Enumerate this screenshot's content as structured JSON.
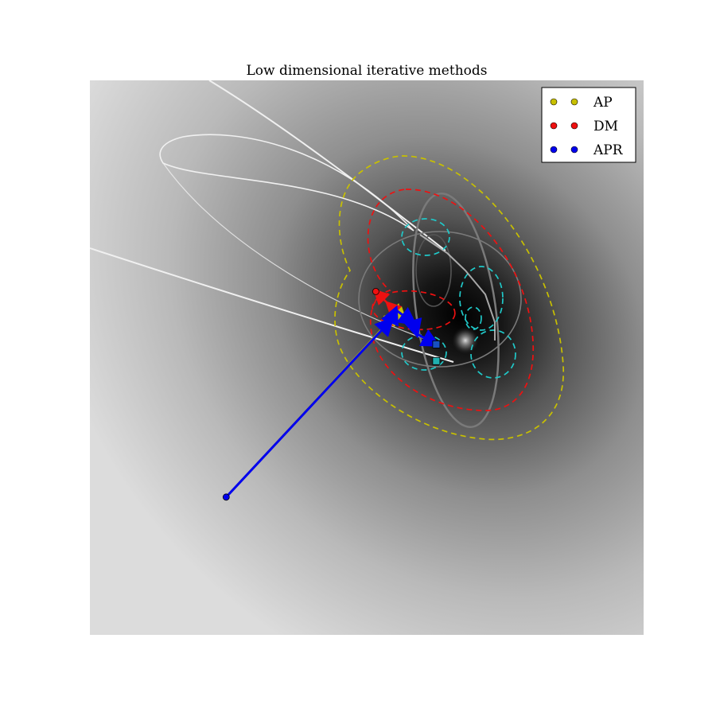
{
  "chart_data": {
    "type": "scatter",
    "title": "Low dimensional iterative methods",
    "xlabel": "",
    "ylabel": "",
    "axes_visible": false,
    "grid": false,
    "legend_placement": "top-right",
    "background": "grayscale objective-function heatmap, dark minimum near the bright focal point",
    "series": [
      {
        "name": "AP",
        "color": "#c8c000",
        "marker": "circle",
        "points": [
          [
            -0.93,
            -0.92
          ],
          [
            0.2,
            0.3
          ],
          [
            0.23,
            0.27
          ],
          [
            0.25,
            0.25
          ]
        ]
      },
      {
        "name": "DM",
        "color": "#ee1111",
        "marker": "circle",
        "points": [
          [
            0.2,
            0.3
          ],
          [
            0.14,
            0.36
          ],
          [
            0.06,
            0.44
          ]
        ]
      },
      {
        "name": "APR",
        "color": "#0000ee",
        "marker": "circle",
        "points": [
          [
            -0.93,
            -0.92
          ],
          [
            0.16,
            0.25
          ],
          [
            0.19,
            0.32
          ],
          [
            0.31,
            0.23
          ],
          [
            0.33,
            0.16
          ],
          [
            0.46,
            0.09
          ]
        ]
      }
    ],
    "markers": [
      {
        "name": "start-point",
        "color": "#0000ee",
        "x": -0.93,
        "y": -0.92
      },
      {
        "name": "dm-point",
        "color": "#ee1111",
        "x": 0.06,
        "y": 0.44
      },
      {
        "name": "apr-end-square",
        "color": "#1850c0",
        "x": 0.46,
        "y": 0.09
      },
      {
        "name": "ap-end-square",
        "color": "#20b0b0",
        "x": 0.46,
        "y": -0.02
      }
    ],
    "contours": [
      {
        "name": "yellow-dashed-contour",
        "color": "#c8c000",
        "style": "dashed"
      },
      {
        "name": "red-dashed-contour",
        "color": "#ee1111",
        "style": "dashed"
      },
      {
        "name": "cyan-dashed-contour",
        "color": "#20c8c8",
        "style": "dashed"
      },
      {
        "name": "gray-ellipse-contour",
        "color": "#777777",
        "style": "solid"
      },
      {
        "name": "white-orbit-contour",
        "color": "#f0f0f0",
        "style": "solid"
      }
    ]
  }
}
